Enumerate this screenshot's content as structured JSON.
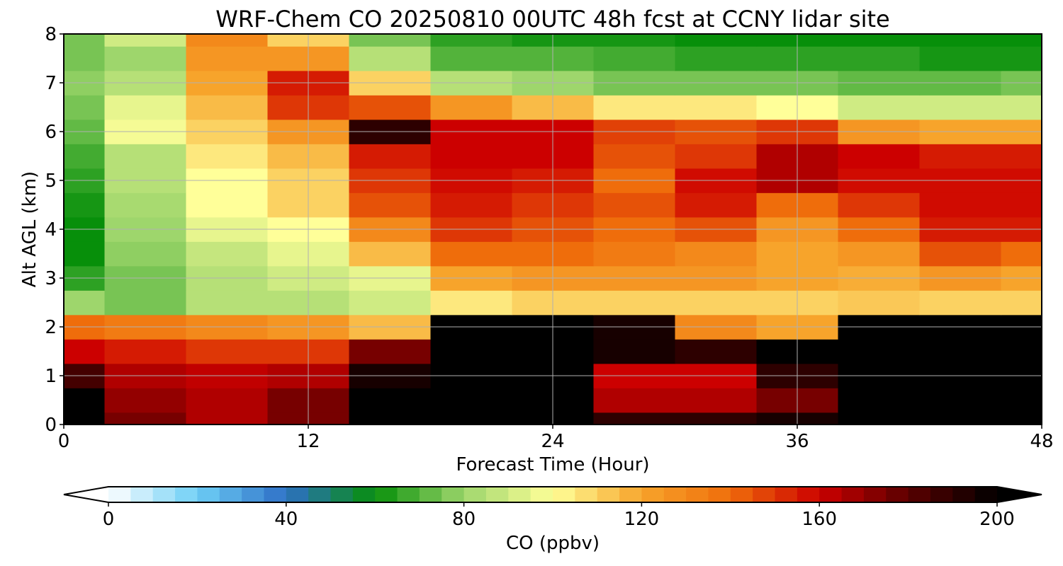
{
  "chart_data": {
    "type": "heatmap",
    "title": "WRF-Chem CO  20250810 00UTC 48h fcst at CCNY lidar site",
    "xlabel": "Forecast Time (Hour)",
    "ylabel": "Alt AGL (km)",
    "xlim": [
      0,
      48
    ],
    "ylim": [
      0,
      8
    ],
    "x_ticks": [
      "0",
      "12",
      "24",
      "36",
      "48"
    ],
    "y_ticks": [
      "0",
      "1",
      "2",
      "3",
      "4",
      "5",
      "6",
      "7",
      "8"
    ],
    "grid": true,
    "colorbar": {
      "label": "CO  (ppbv)",
      "min": 0,
      "max": 200,
      "ticks": [
        "0",
        "40",
        "80",
        "120",
        "160",
        "200"
      ],
      "extend": "both",
      "colors": [
        "#ffffff",
        "#6ecff6",
        "#2e6fc6",
        "#078f0a",
        "#9ed66c",
        "#ffff99",
        "#f7a42b",
        "#ef6d0b",
        "#cc0000",
        "#5a0000",
        "#000000"
      ]
    },
    "x": [
      0,
      4,
      8,
      12,
      16,
      20,
      24,
      28,
      32,
      36,
      40,
      44,
      48
    ],
    "y": [
      0,
      0.5,
      1,
      1.5,
      2,
      2.5,
      3,
      3.5,
      4,
      4.5,
      5,
      5.5,
      6,
      6.5,
      7,
      7.5,
      8
    ],
    "z": [
      [
        200,
        175,
        165,
        175,
        200,
        200,
        200,
        190,
        190,
        195,
        200,
        200,
        200
      ],
      [
        200,
        170,
        165,
        175,
        200,
        200,
        200,
        165,
        165,
        175,
        200,
        200,
        200
      ],
      [
        185,
        165,
        162,
        165,
        195,
        200,
        200,
        160,
        160,
        190,
        200,
        200,
        200
      ],
      [
        160,
        155,
        150,
        150,
        175,
        200,
        200,
        195,
        190,
        200,
        200,
        200,
        200
      ],
      [
        140,
        135,
        130,
        125,
        115,
        200,
        200,
        195,
        130,
        120,
        200,
        200,
        200
      ],
      [
        80,
        75,
        85,
        85,
        90,
        105,
        110,
        110,
        110,
        110,
        112,
        110,
        110
      ],
      [
        65,
        75,
        85,
        90,
        95,
        120,
        125,
        125,
        125,
        120,
        118,
        125,
        120
      ],
      [
        60,
        78,
        88,
        95,
        115,
        140,
        140,
        135,
        130,
        120,
        125,
        145,
        140
      ],
      [
        60,
        80,
        95,
        100,
        130,
        150,
        145,
        140,
        145,
        125,
        140,
        155,
        155
      ],
      [
        62,
        82,
        100,
        110,
        145,
        155,
        150,
        145,
        155,
        140,
        150,
        158,
        158
      ],
      [
        65,
        85,
        100,
        110,
        150,
        158,
        155,
        140,
        158,
        165,
        158,
        158,
        158
      ],
      [
        68,
        85,
        105,
        115,
        155,
        160,
        160,
        145,
        150,
        165,
        160,
        155,
        155
      ],
      [
        72,
        98,
        110,
        125,
        190,
        160,
        160,
        148,
        145,
        150,
        125,
        120,
        120
      ],
      [
        75,
        95,
        115,
        150,
        145,
        125,
        115,
        105,
        105,
        100,
        90,
        90,
        90
      ],
      [
        78,
        85,
        120,
        155,
        110,
        85,
        80,
        75,
        75,
        75,
        72,
        72,
        75
      ],
      [
        75,
        80,
        125,
        125,
        85,
        70,
        70,
        68,
        65,
        65,
        65,
        62,
        62
      ],
      [
        75,
        90,
        130,
        110,
        75,
        65,
        62,
        62,
        60,
        60,
        60,
        60,
        60
      ]
    ]
  }
}
